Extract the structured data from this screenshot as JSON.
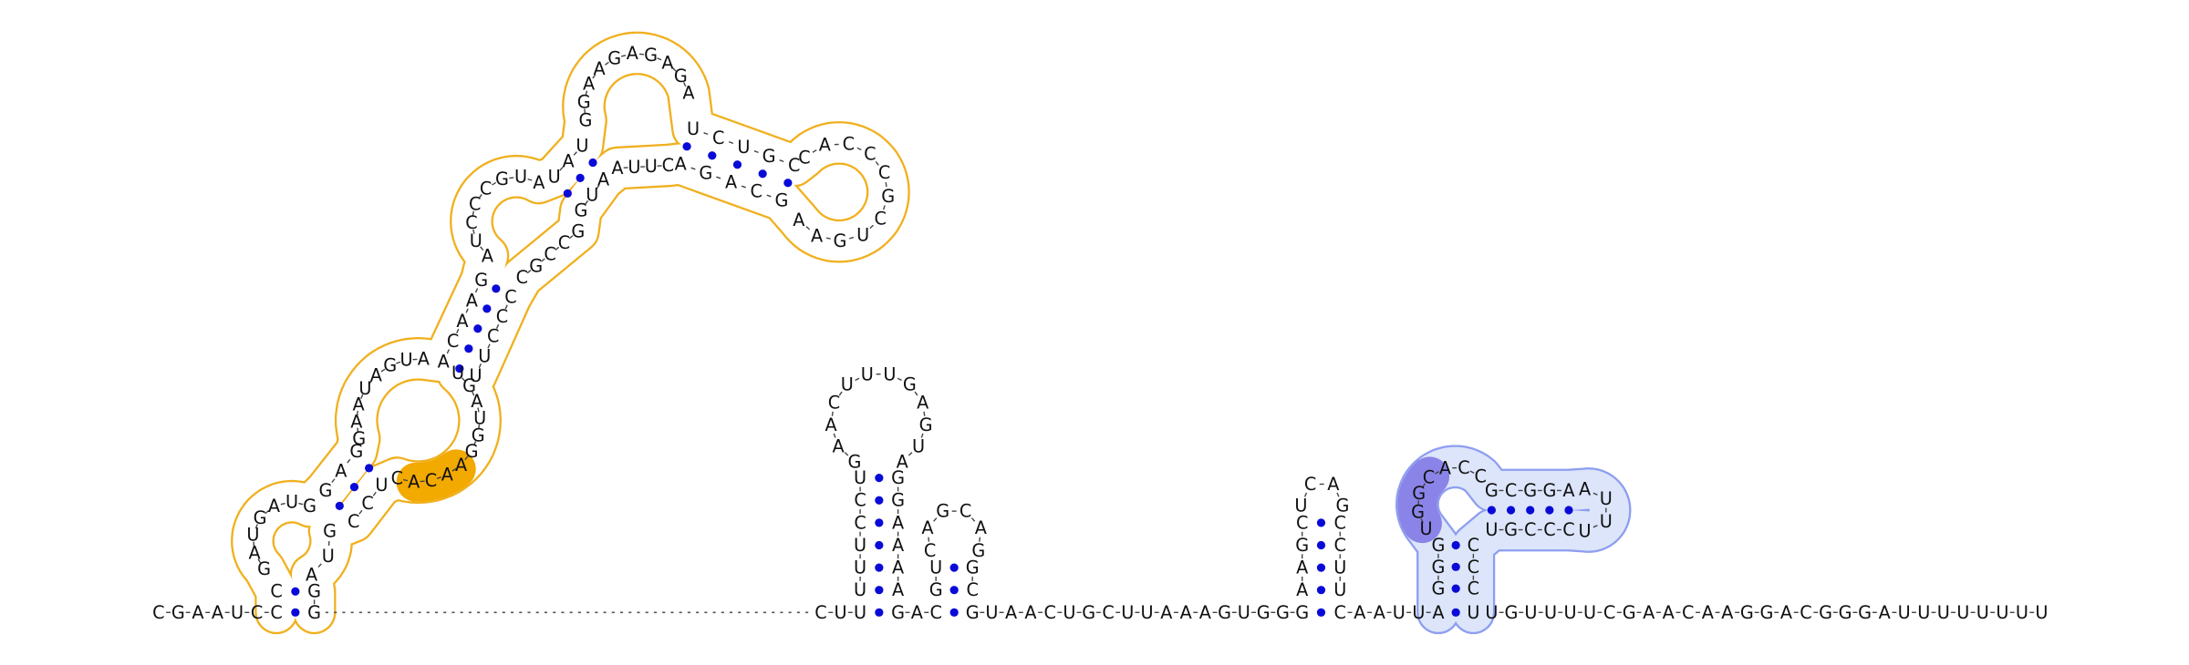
{
  "strands": [
    [
      "C",
      "G",
      "A",
      "A",
      "U",
      "C",
      "C"
    ],
    [
      "C"
    ],
    [
      "G",
      "A",
      "U",
      "G",
      "A",
      "U",
      "G"
    ],
    [
      "G",
      "A",
      "G"
    ],
    [
      "G",
      "A",
      "A",
      "U",
      "A",
      "G",
      "U",
      "A"
    ],
    [
      "A",
      "C",
      "A",
      "A",
      "G"
    ],
    [
      "A",
      "U",
      "C",
      "C",
      "C",
      "G",
      "U",
      "A"
    ],
    [
      "U",
      "A",
      "U"
    ],
    [
      "G",
      "G",
      "A",
      "A",
      "G",
      "A",
      "G",
      "A",
      "G",
      "A"
    ],
    [
      "U",
      "C",
      "U",
      "G",
      "C"
    ],
    [
      "C",
      "A",
      "C",
      "C",
      "C",
      "G",
      "C",
      "U",
      "G",
      "A",
      "A"
    ],
    [
      "G",
      "C",
      "A",
      "G",
      "A"
    ],
    [
      "C",
      "U",
      "U",
      "A"
    ],
    [
      "A",
      "U",
      "G"
    ],
    [
      "G",
      "C",
      "C",
      "G",
      "C"
    ],
    [
      "C",
      "C",
      "C",
      "U",
      "U"
    ],
    [
      "U",
      "G",
      "A",
      "U",
      "G",
      "G",
      "A",
      "A",
      "C",
      "A",
      "C"
    ],
    [
      "U",
      "C",
      "C"
    ],
    [
      "G",
      "U",
      "A"
    ],
    [
      "G",
      "G"
    ],
    [
      "C",
      "U",
      "U"
    ],
    [
      "U",
      "U",
      "U",
      "C",
      "C",
      "U"
    ],
    [
      "G",
      "A",
      "A",
      "C",
      "U",
      "U",
      "U",
      "G",
      "A",
      "G",
      "U",
      "A"
    ],
    [
      "G",
      "G",
      "A",
      "A",
      "A",
      "A"
    ],
    [
      "G",
      "A",
      "C"
    ],
    [
      "G",
      "U"
    ],
    [
      "C",
      "A",
      "G",
      "C",
      "A",
      "G"
    ],
    [
      "G",
      "C"
    ],
    [
      "G",
      "U",
      "A",
      "A",
      "C",
      "U",
      "G",
      "C",
      "U",
      "U",
      "A",
      "A",
      "A",
      "G",
      "U",
      "G",
      "G",
      "G"
    ],
    [
      "A",
      "A",
      "G",
      "C"
    ],
    [
      "U",
      "C",
      "A",
      "G"
    ],
    [
      "C",
      "C",
      "U",
      "U"
    ],
    [
      "C",
      "A",
      "A",
      "U",
      "U",
      "A"
    ],
    [
      "G",
      "G",
      "G"
    ],
    [
      "U",
      "G",
      "G",
      "C",
      "A",
      "C",
      "C"
    ],
    [
      "G",
      "C",
      "G",
      "G",
      "A"
    ],
    [
      "A",
      "U",
      "U",
      "U"
    ],
    [
      "C",
      "C",
      "C",
      "G",
      "U"
    ],
    [
      "C",
      "C",
      "C"
    ],
    [
      "U"
    ],
    [
      "U",
      "G",
      "U",
      "U",
      "U",
      "U",
      "C",
      "G",
      "A",
      "A",
      "C",
      "A",
      "A",
      "G",
      "G",
      "A",
      "C",
      "G",
      "G",
      "G",
      "A",
      "U",
      "U",
      "U",
      "U",
      "U",
      "U",
      "U",
      "U"
    ]
  ]
}
